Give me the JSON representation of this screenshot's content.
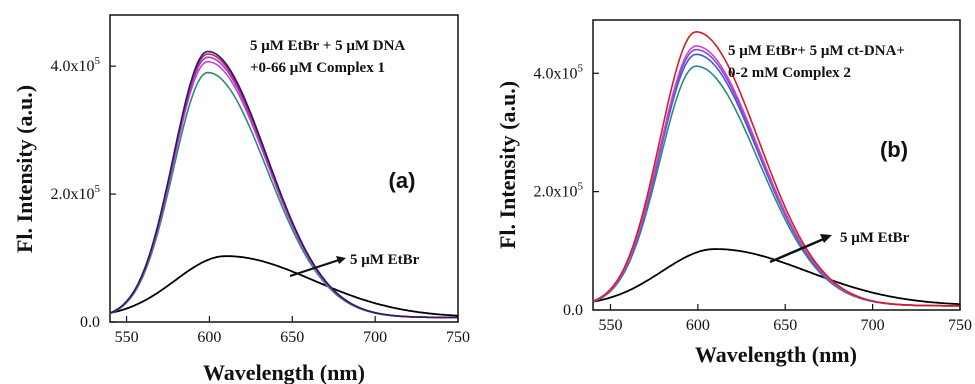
{
  "chart_data": [
    {
      "type": "line",
      "panel_label": "(a)",
      "xlabel": "Wavelength (nm)",
      "ylabel": "Fl. Intensity (a.u.)",
      "xlim": [
        540,
        750
      ],
      "ylim": [
        0,
        480000
      ],
      "xticks": [
        550,
        600,
        650,
        700,
        750
      ],
      "yticks": [
        {
          "value": 0,
          "label": "0.0"
        },
        {
          "value": 200000,
          "label": "2.0x10",
          "exp": "5"
        },
        {
          "value": 400000,
          "label": "4.0x10",
          "exp": "5"
        }
      ],
      "annotation": {
        "lines": [
          "5 μM EtBr + 5 μM DNA",
          "+0-66 μM Complex 1"
        ]
      },
      "arrow_label": "5 μM EtBr",
      "series": [
        {
          "color": "#000000",
          "peak_x": 610,
          "peak_y": 103000,
          "width": 34
        },
        {
          "color": "#2b8a7e",
          "peak_x": 599,
          "peak_y": 390000,
          "width": 23
        },
        {
          "color": "#cc44cc",
          "peak_x": 599,
          "peak_y": 407000,
          "width": 23
        },
        {
          "color": "#8e44d8",
          "peak_x": 599,
          "peak_y": 414000,
          "width": 23
        },
        {
          "color": "#d21e5a",
          "peak_x": 599,
          "peak_y": 419000,
          "width": 23
        },
        {
          "color": "#2a1a6a",
          "peak_x": 599,
          "peak_y": 423000,
          "width": 23
        }
      ]
    },
    {
      "type": "line",
      "panel_label": "(b)",
      "xlabel": "Wavelength (nm)",
      "ylabel": "Fl. Intensity (a.u.)",
      "xlim": [
        540,
        750
      ],
      "ylim": [
        0,
        490000
      ],
      "xticks": [
        550,
        600,
        650,
        700,
        750
      ],
      "yticks": [
        {
          "value": 0,
          "label": "0.0"
        },
        {
          "value": 200000,
          "label": "2.0x10",
          "exp": "5"
        },
        {
          "value": 400000,
          "label": "4.0x10",
          "exp": "5"
        }
      ],
      "annotation": {
        "lines": [
          "5 μM EtBr+ 5 μM ct-DNA+",
          "0-2 mM Complex 2"
        ]
      },
      "arrow_label": "5 μM EtBr",
      "series": [
        {
          "color": "#000000",
          "peak_x": 610,
          "peak_y": 103000,
          "width": 34
        },
        {
          "color": "#2b8a7e",
          "peak_x": 599,
          "peak_y": 412000,
          "width": 23
        },
        {
          "color": "#3a5fd0",
          "peak_x": 599,
          "peak_y": 432000,
          "width": 23
        },
        {
          "color": "#8e44d8",
          "peak_x": 599,
          "peak_y": 440000,
          "width": 23
        },
        {
          "color": "#cc44cc",
          "peak_x": 599,
          "peak_y": 446000,
          "width": 23
        },
        {
          "color": "#d21e2a",
          "peak_x": 599,
          "peak_y": 470000,
          "width": 23
        }
      ]
    }
  ]
}
